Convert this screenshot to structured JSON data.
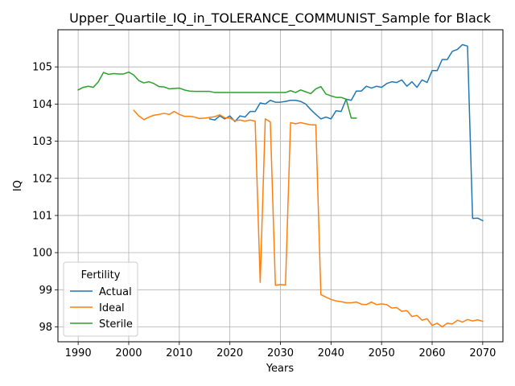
{
  "chart_data": {
    "type": "line",
    "title": "Upper_Quartile_IQ_in_TOLERANCE_COMMUNIST_Sample for Black",
    "xlabel": "Years",
    "ylabel": "IQ",
    "xlim": [
      1986,
      2074
    ],
    "ylim": [
      97.6,
      106.0
    ],
    "xticks": [
      1990,
      2000,
      2010,
      2020,
      2030,
      2040,
      2050,
      2060,
      2070
    ],
    "yticks": [
      98,
      99,
      100,
      101,
      102,
      103,
      104,
      105
    ],
    "grid": true,
    "legend": {
      "title": "Fertility",
      "position": "lower-left"
    },
    "series": [
      {
        "name": "Actual",
        "color": "#1f77b4",
        "x": [
          2016,
          2017,
          2018,
          2019,
          2020,
          2021,
          2022,
          2023,
          2024,
          2025,
          2026,
          2027,
          2028,
          2029,
          2030,
          2031,
          2032,
          2033,
          2034,
          2035,
          2036,
          2037,
          2038,
          2039,
          2040,
          2041,
          2042,
          2043,
          2044,
          2045,
          2046,
          2047,
          2048,
          2049,
          2050,
          2051,
          2052,
          2053,
          2054,
          2055,
          2056,
          2057,
          2058,
          2059,
          2060,
          2061,
          2062,
          2063,
          2064,
          2065,
          2066,
          2067,
          2068,
          2069,
          2070
        ],
        "y": [
          103.6,
          103.57,
          103.68,
          103.6,
          103.68,
          103.53,
          103.68,
          103.65,
          103.8,
          103.8,
          104.03,
          104.0,
          104.1,
          104.05,
          104.05,
          104.07,
          104.1,
          104.1,
          104.07,
          104.0,
          103.85,
          103.72,
          103.6,
          103.65,
          103.6,
          103.82,
          103.8,
          104.13,
          104.1,
          104.35,
          104.35,
          104.48,
          104.43,
          104.48,
          104.45,
          104.55,
          104.6,
          104.58,
          104.65,
          104.48,
          104.6,
          104.45,
          104.65,
          104.58,
          104.9,
          104.9,
          105.2,
          105.2,
          105.42,
          105.47,
          105.6,
          105.56,
          100.92,
          100.93,
          100.86
        ]
      },
      {
        "name": "Ideal",
        "color": "#ff7f0e",
        "x": [
          2001,
          2002,
          2003,
          2004,
          2005,
          2006,
          2007,
          2008,
          2009,
          2010,
          2011,
          2012,
          2013,
          2014,
          2015,
          2016,
          2017,
          2018,
          2019,
          2020,
          2021,
          2022,
          2023,
          2024,
          2025,
          2026,
          2027,
          2028,
          2029,
          2030,
          2031,
          2032,
          2033,
          2034,
          2035,
          2036,
          2037,
          2038,
          2039,
          2040,
          2041,
          2042,
          2043,
          2044,
          2045,
          2046,
          2047,
          2048,
          2049,
          2050,
          2051,
          2052,
          2053,
          2054,
          2055,
          2056,
          2057,
          2058,
          2059,
          2060,
          2061,
          2062,
          2063,
          2064,
          2065,
          2066,
          2067,
          2068,
          2069,
          2070
        ],
        "y": [
          103.83,
          103.68,
          103.58,
          103.65,
          103.7,
          103.72,
          103.75,
          103.72,
          103.8,
          103.72,
          103.67,
          103.67,
          103.65,
          103.61,
          103.62,
          103.64,
          103.66,
          103.71,
          103.63,
          103.62,
          103.55,
          103.57,
          103.54,
          103.57,
          103.54,
          99.2,
          103.6,
          103.52,
          99.12,
          99.14,
          99.13,
          103.5,
          103.47,
          103.5,
          103.47,
          103.44,
          103.44,
          98.87,
          98.8,
          98.74,
          98.7,
          98.68,
          98.65,
          98.65,
          98.67,
          98.61,
          98.6,
          98.67,
          98.6,
          98.62,
          98.6,
          98.51,
          98.52,
          98.42,
          98.44,
          98.28,
          98.31,
          98.18,
          98.22,
          98.04,
          98.1,
          98.0,
          98.1,
          98.08,
          98.18,
          98.13,
          98.2,
          98.16,
          98.19,
          98.15
        ]
      },
      {
        "name": "Sterile",
        "color": "#2ca02c",
        "x": [
          1990,
          1991,
          1992,
          1993,
          1994,
          1995,
          1996,
          1997,
          1998,
          1999,
          2000,
          2001,
          2002,
          2003,
          2004,
          2005,
          2006,
          2007,
          2008,
          2009,
          2010,
          2011,
          2012,
          2013,
          2014,
          2015,
          2016,
          2017,
          2018,
          2019,
          2020,
          2021,
          2022,
          2023,
          2024,
          2025,
          2026,
          2027,
          2028,
          2029,
          2030,
          2031,
          2032,
          2033,
          2034,
          2035,
          2036,
          2037,
          2038,
          2039,
          2040,
          2041,
          2042,
          2043,
          2044,
          2045
        ],
        "y": [
          104.38,
          104.45,
          104.48,
          104.45,
          104.6,
          104.85,
          104.8,
          104.82,
          104.81,
          104.81,
          104.86,
          104.78,
          104.63,
          104.57,
          104.6,
          104.55,
          104.47,
          104.46,
          104.41,
          104.42,
          104.43,
          104.38,
          104.35,
          104.34,
          104.34,
          104.34,
          104.34,
          104.31,
          104.31,
          104.31,
          104.31,
          104.31,
          104.31,
          104.31,
          104.31,
          104.31,
          104.31,
          104.31,
          104.31,
          104.31,
          104.31,
          104.31,
          104.36,
          104.31,
          104.38,
          104.33,
          104.28,
          104.41,
          104.47,
          104.27,
          104.22,
          104.18,
          104.18,
          104.13,
          103.62,
          103.62
        ]
      }
    ]
  }
}
